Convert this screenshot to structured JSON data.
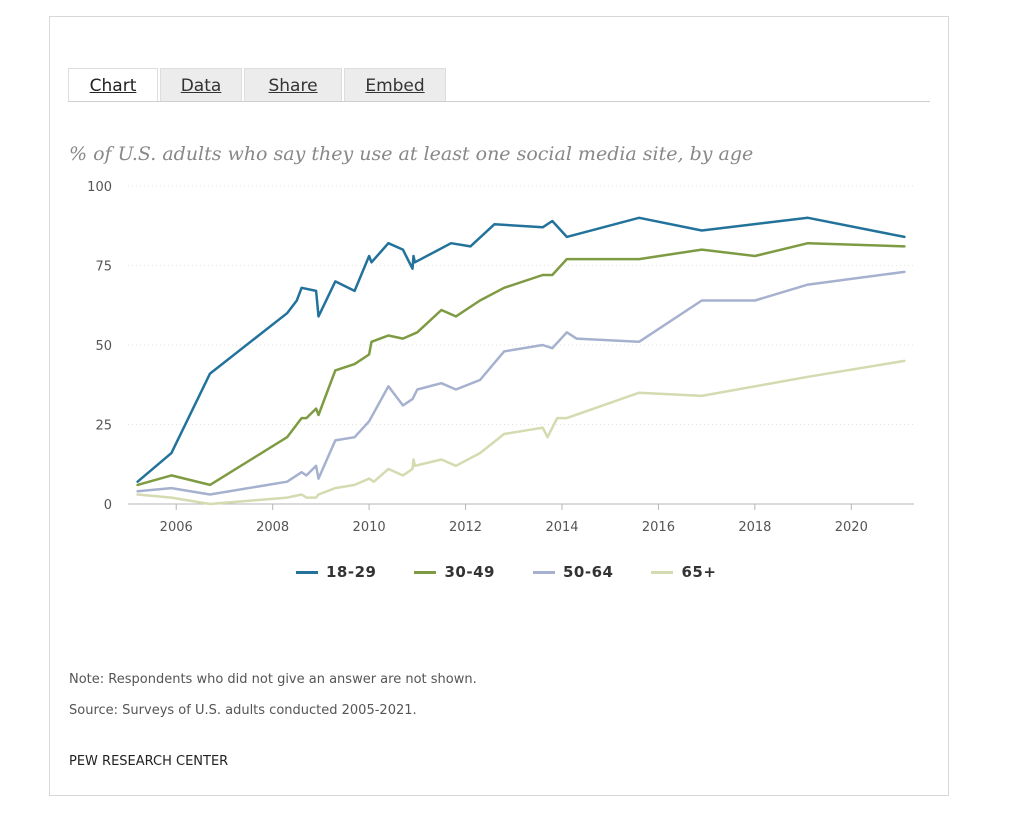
{
  "tabs": [
    {
      "label": "Chart"
    },
    {
      "label": "Data"
    },
    {
      "label": "Share"
    },
    {
      "label": "Embed"
    }
  ],
  "footer": {
    "note": "Note: Respondents who did not give an answer are not shown.",
    "source": "Source: Surveys of U.S. adults conducted 2005-2021.",
    "brand": "PEW RESEARCH CENTER"
  },
  "chart_data": {
    "type": "line",
    "title": "% of U.S. adults who say they use at least one social media site, by age",
    "xlabel": "",
    "ylabel": "",
    "xlim": [
      2005,
      2021.3
    ],
    "ylim": [
      0,
      100
    ],
    "xticks": [
      "2006",
      "2008",
      "2010",
      "2012",
      "2014",
      "2016",
      "2018",
      "2020"
    ],
    "xtick_values": [
      2006,
      2008,
      2010,
      2012,
      2014,
      2016,
      2018,
      2020
    ],
    "yticks": [
      "0",
      "25",
      "50",
      "75",
      "100"
    ],
    "ytick_values": [
      0,
      25,
      50,
      75,
      100
    ],
    "grid": "horizontal-dotted",
    "legend_position": "bottom-center",
    "series": [
      {
        "name": "18-29",
        "color": "#23729b",
        "points": [
          [
            2005.2,
            7
          ],
          [
            2005.9,
            16
          ],
          [
            2006.7,
            41
          ],
          [
            2008.3,
            60
          ],
          [
            2008.5,
            64
          ],
          [
            2008.6,
            68
          ],
          [
            2008.9,
            67
          ],
          [
            2008.95,
            59
          ],
          [
            2009.3,
            70
          ],
          [
            2009.7,
            67
          ],
          [
            2010.0,
            78
          ],
          [
            2010.05,
            76
          ],
          [
            2010.4,
            82
          ],
          [
            2010.7,
            80
          ],
          [
            2010.9,
            74
          ],
          [
            2010.92,
            78
          ],
          [
            2010.95,
            76
          ],
          [
            2011.7,
            82
          ],
          [
            2012.1,
            81
          ],
          [
            2012.6,
            88
          ],
          [
            2013.6,
            87
          ],
          [
            2013.8,
            89
          ],
          [
            2014.1,
            84
          ],
          [
            2015.6,
            90
          ],
          [
            2016.9,
            86
          ],
          [
            2019.1,
            90
          ],
          [
            2021.1,
            84
          ]
        ]
      },
      {
        "name": "30-49",
        "color": "#7e9b43",
        "points": [
          [
            2005.2,
            6
          ],
          [
            2005.9,
            9
          ],
          [
            2006.7,
            6
          ],
          [
            2008.3,
            21
          ],
          [
            2008.6,
            27
          ],
          [
            2008.7,
            27
          ],
          [
            2008.9,
            30
          ],
          [
            2008.95,
            28
          ],
          [
            2009.3,
            42
          ],
          [
            2009.7,
            44
          ],
          [
            2010.0,
            47
          ],
          [
            2010.05,
            51
          ],
          [
            2010.4,
            53
          ],
          [
            2010.7,
            52
          ],
          [
            2011.0,
            54
          ],
          [
            2011.5,
            61
          ],
          [
            2011.8,
            59
          ],
          [
            2012.3,
            64
          ],
          [
            2012.8,
            68
          ],
          [
            2013.6,
            72
          ],
          [
            2013.8,
            72
          ],
          [
            2014.1,
            77
          ],
          [
            2015.6,
            77
          ],
          [
            2016.9,
            80
          ],
          [
            2018.0,
            78
          ],
          [
            2019.1,
            82
          ],
          [
            2021.1,
            81
          ]
        ]
      },
      {
        "name": "50-64",
        "color": "#a6b1cf",
        "points": [
          [
            2005.2,
            4
          ],
          [
            2005.9,
            5
          ],
          [
            2006.7,
            3
          ],
          [
            2008.3,
            7
          ],
          [
            2008.6,
            10
          ],
          [
            2008.7,
            9
          ],
          [
            2008.9,
            12
          ],
          [
            2008.95,
            8
          ],
          [
            2009.3,
            20
          ],
          [
            2009.7,
            21
          ],
          [
            2010.0,
            26
          ],
          [
            2010.4,
            37
          ],
          [
            2010.7,
            31
          ],
          [
            2010.9,
            33
          ],
          [
            2011.0,
            36
          ],
          [
            2011.5,
            38
          ],
          [
            2011.8,
            36
          ],
          [
            2012.3,
            39
          ],
          [
            2012.8,
            48
          ],
          [
            2013.6,
            50
          ],
          [
            2013.8,
            49
          ],
          [
            2014.1,
            54
          ],
          [
            2014.3,
            52
          ],
          [
            2015.6,
            51
          ],
          [
            2016.9,
            64
          ],
          [
            2018.0,
            64
          ],
          [
            2019.1,
            69
          ],
          [
            2021.1,
            73
          ]
        ]
      },
      {
        "name": "65+",
        "color": "#d3dbb0",
        "points": [
          [
            2005.2,
            3
          ],
          [
            2005.9,
            2
          ],
          [
            2006.7,
            0
          ],
          [
            2008.3,
            2
          ],
          [
            2008.6,
            3
          ],
          [
            2008.7,
            2
          ],
          [
            2008.9,
            2
          ],
          [
            2008.95,
            3
          ],
          [
            2009.3,
            5
          ],
          [
            2009.7,
            6
          ],
          [
            2010.0,
            8
          ],
          [
            2010.1,
            7
          ],
          [
            2010.4,
            11
          ],
          [
            2010.7,
            9
          ],
          [
            2010.9,
            11
          ],
          [
            2010.92,
            14
          ],
          [
            2010.95,
            12
          ],
          [
            2011.5,
            14
          ],
          [
            2011.8,
            12
          ],
          [
            2012.3,
            16
          ],
          [
            2012.8,
            22
          ],
          [
            2013.6,
            24
          ],
          [
            2013.7,
            21
          ],
          [
            2013.9,
            27
          ],
          [
            2014.1,
            27
          ],
          [
            2015.6,
            35
          ],
          [
            2016.9,
            34
          ],
          [
            2019.1,
            40
          ],
          [
            2021.1,
            45
          ]
        ]
      }
    ]
  }
}
